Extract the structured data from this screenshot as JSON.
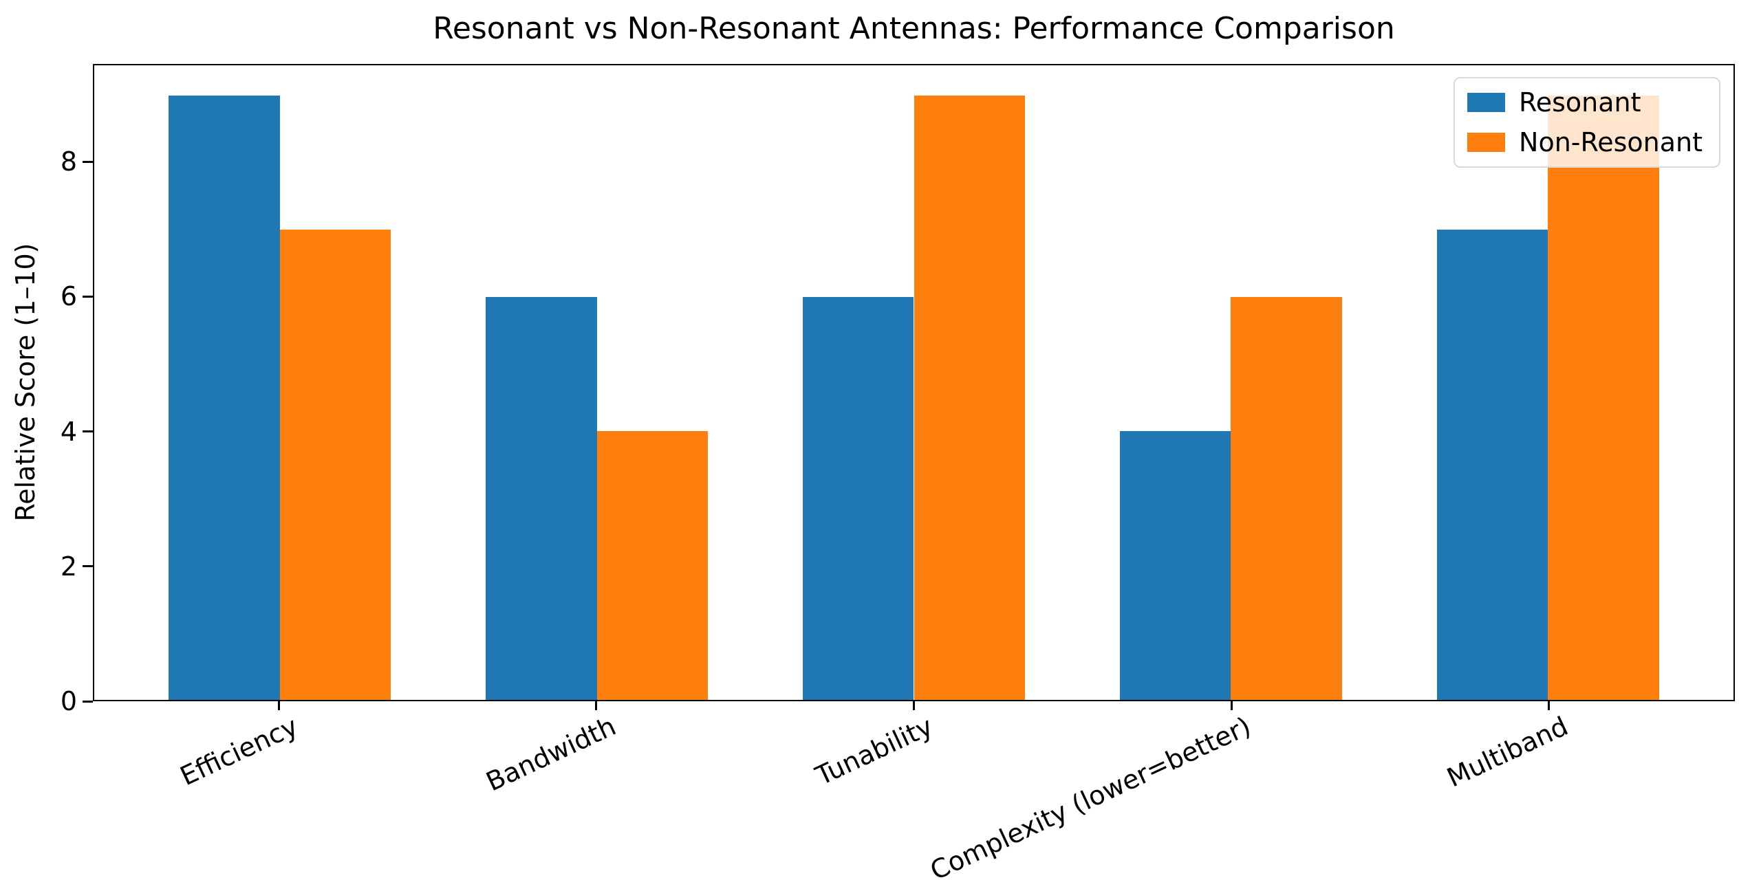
{
  "chart_data": {
    "type": "bar",
    "title": "Resonant vs Non-Resonant Antennas: Performance Comparison",
    "xlabel": "",
    "ylabel": "Relative Score (1–10)",
    "categories": [
      "Efficiency",
      "Bandwidth",
      "Tunability",
      "Complexity (lower=better)",
      "Multiband"
    ],
    "series": [
      {
        "name": "Resonant",
        "color": "#1f77b4",
        "values": [
          9,
          6,
          6,
          4,
          7
        ]
      },
      {
        "name": "Non-Resonant",
        "color": "#ff7f0e",
        "values": [
          7,
          4,
          9,
          6,
          9
        ]
      }
    ],
    "yticks": [
      0,
      2,
      4,
      6,
      8
    ],
    "ylim": [
      0,
      9.45
    ],
    "xlim": [
      -0.585,
      4.585
    ],
    "bar_width_fraction": 0.35,
    "x_tick_rotation_deg": 25,
    "grid": false,
    "legend_position": "upper right",
    "background": "#ffffff"
  }
}
